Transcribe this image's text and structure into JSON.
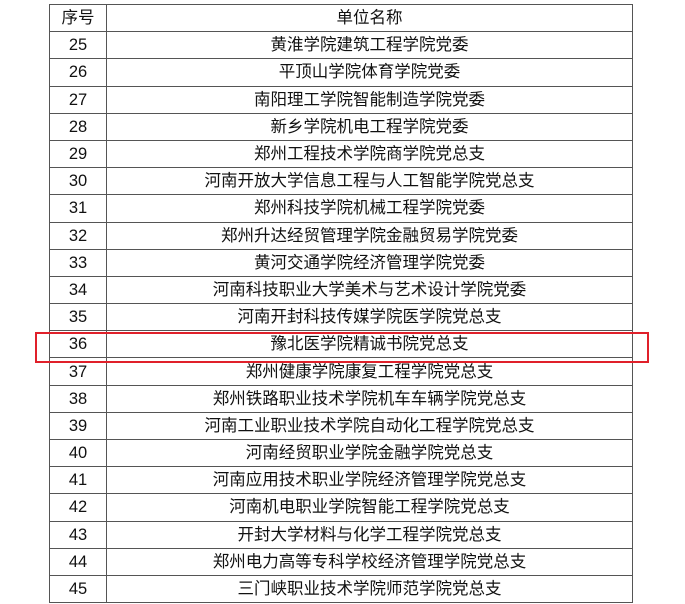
{
  "table": {
    "headers": [
      "序号",
      "单位名称"
    ],
    "rows": [
      [
        "25",
        "黄淮学院建筑工程学院党委"
      ],
      [
        "26",
        "平顶山学院体育学院党委"
      ],
      [
        "27",
        "南阳理工学院智能制造学院党委"
      ],
      [
        "28",
        "新乡学院机电工程学院党委"
      ],
      [
        "29",
        "郑州工程技术学院商学院党总支"
      ],
      [
        "30",
        "河南开放大学信息工程与人工智能学院党总支"
      ],
      [
        "31",
        "郑州科技学院机械工程学院党委"
      ],
      [
        "32",
        "郑州升达经贸管理学院金融贸易学院党委"
      ],
      [
        "33",
        "黄河交通学院经济管理学院党委"
      ],
      [
        "34",
        "河南科技职业大学美术与艺术设计学院党委"
      ],
      [
        "35",
        "河南开封科技传媒学院医学院党总支"
      ],
      [
        "36",
        "豫北医学院精诚书院党总支"
      ],
      [
        "37",
        "郑州健康学院康复工程学院党总支"
      ],
      [
        "38",
        "郑州铁路职业技术学院机车车辆学院党总支"
      ],
      [
        "39",
        "河南工业职业技术学院自动化工程学院党总支"
      ],
      [
        "40",
        "河南经贸职业学院金融学院党总支"
      ],
      [
        "41",
        "河南应用技术职业学院经济管理学院党总支"
      ],
      [
        "42",
        "河南机电职业学院智能工程学院党总支"
      ],
      [
        "43",
        "开封大学材料与化学工程学院党总支"
      ],
      [
        "44",
        "郑州电力高等专科学校经济管理学院党总支"
      ],
      [
        "45",
        "三门峡职业技术学院师范学院党总支"
      ]
    ],
    "highlighted_row": "36",
    "highlight_color": "#e0202a"
  }
}
